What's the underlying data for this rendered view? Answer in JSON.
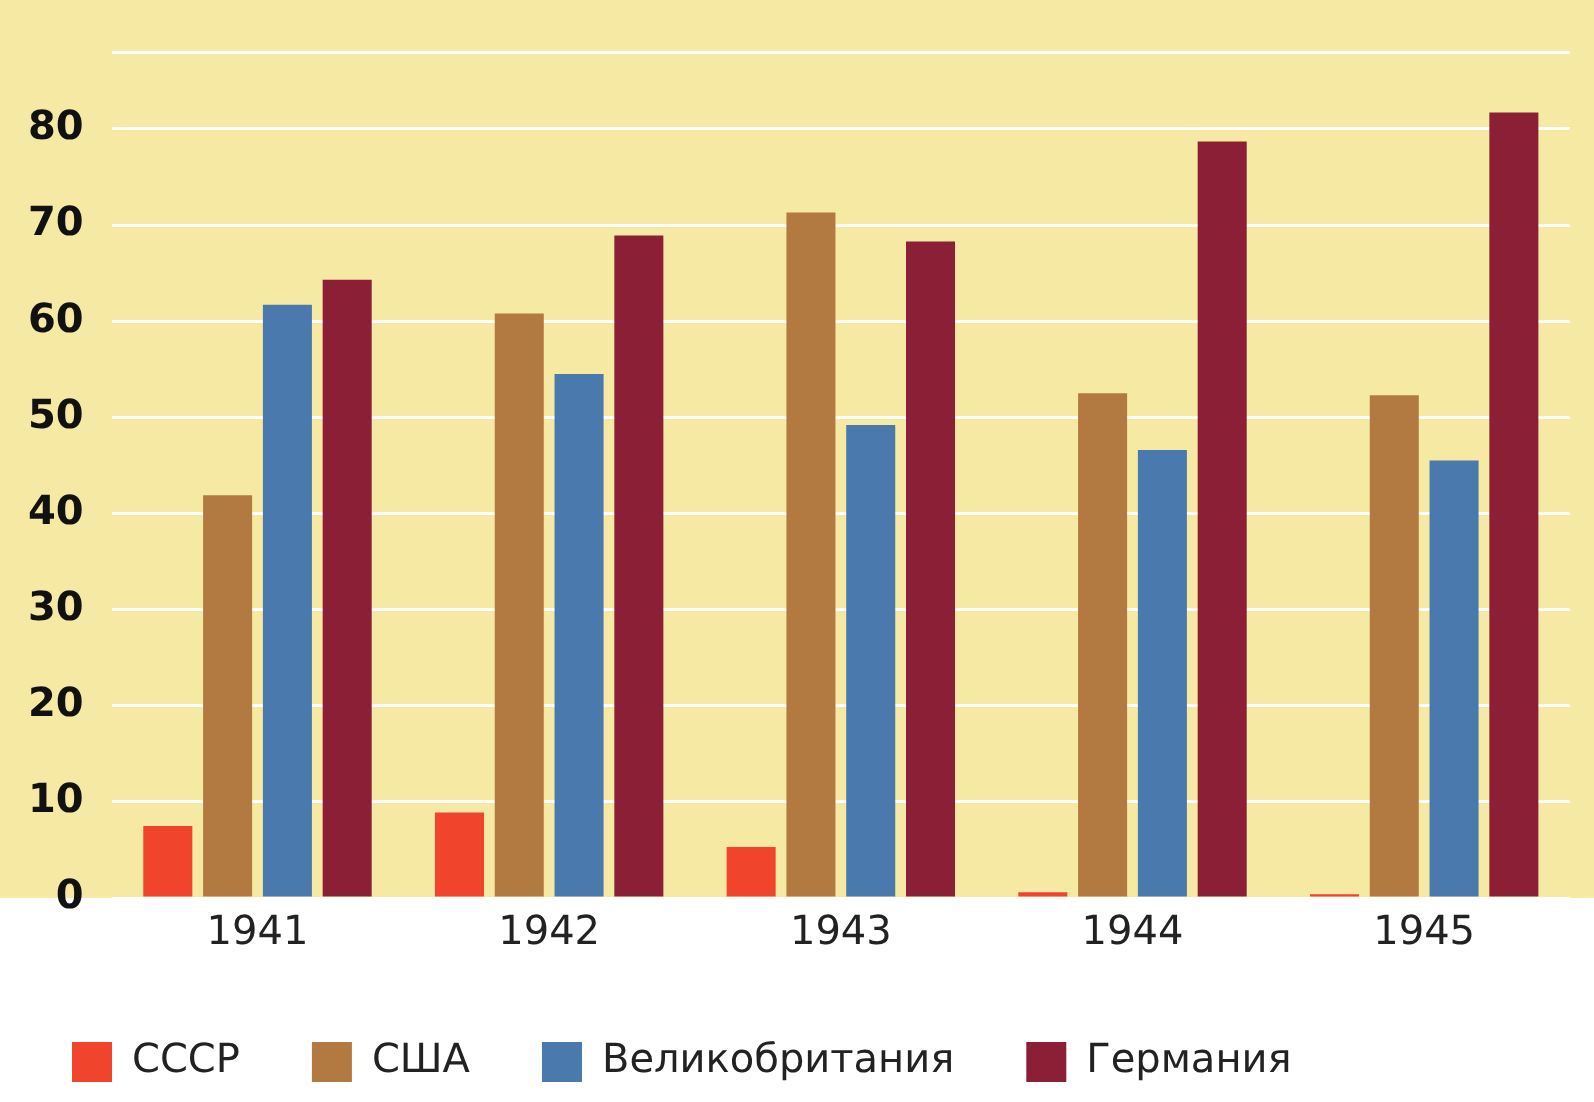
{
  "chart_data": {
    "type": "bar",
    "categories": [
      "1941",
      "1942",
      "1943",
      "1944",
      "1945"
    ],
    "series": [
      {
        "name": "СССР",
        "color": "#f0452c",
        "values": [
          7.5,
          8.9,
          5.3,
          0.6,
          0.4
        ]
      },
      {
        "name": "США",
        "color": "#b27a41",
        "values": [
          41.9,
          60.8,
          71.3,
          52.5,
          52.3
        ]
      },
      {
        "name": "Великобритания",
        "color": "#4a79ad",
        "values": [
          61.7,
          54.5,
          49.2,
          46.6,
          45.5
        ]
      },
      {
        "name": "Германия",
        "color": "#8a1f35",
        "values": [
          64.3,
          68.9,
          68.3,
          78.7,
          81.7
        ]
      }
    ],
    "ylim": [
      0,
      88
    ],
    "yticks": [
      0,
      10,
      20,
      30,
      40,
      50,
      60,
      70,
      80,
      {
        "value": 88,
        "label": null
      }
    ],
    "grid": "y",
    "legend": "bottom"
  }
}
